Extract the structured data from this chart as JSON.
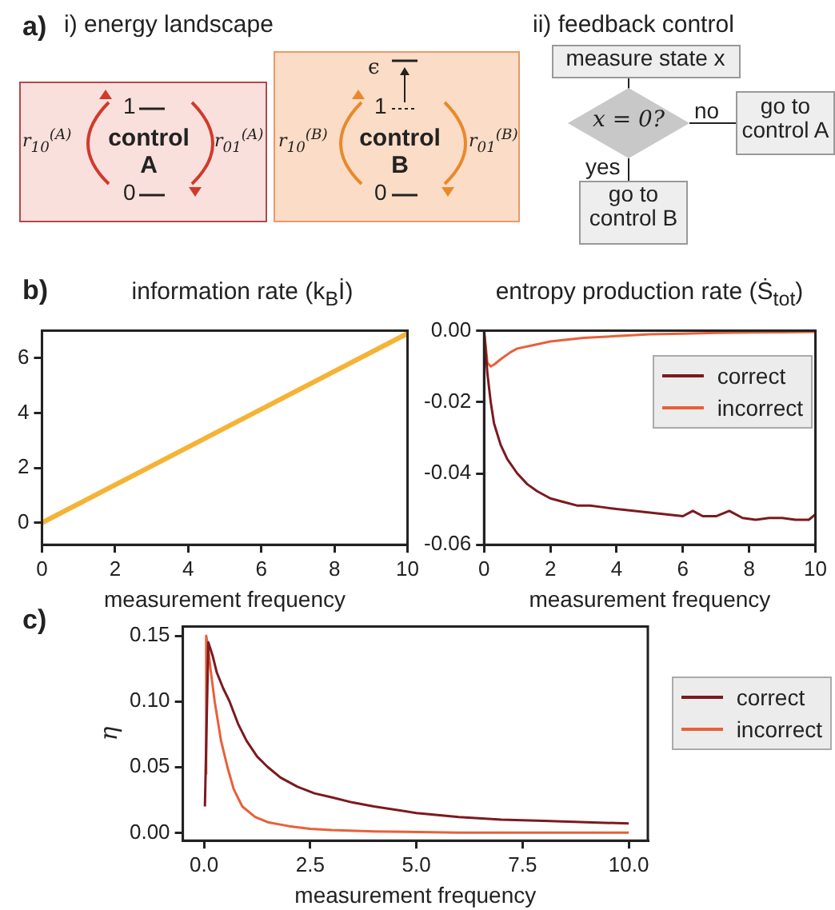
{
  "chart_data": [
    {
      "type": "other",
      "annotations": [
        "a)",
        "i) energy landscape",
        "ii) feedback control",
        "r$_{10}$$^{(A)}$",
        "r$_{01}$$^{(A)}$",
        "control A",
        "1",
        "0",
        "r$_{10}$$^{(B)}$",
        "r$_{01}$$^{(B)}$",
        "control B",
        "ϵ",
        "1",
        "0",
        "measure state x",
        "x = 0?",
        "no",
        "yes",
        "go to control A",
        "go to control B"
      ]
    },
    {
      "type": "line",
      "title": "information rate (k$_{B}$İ)",
      "xlabel": "measurement frequency",
      "annotations": [
        "b)"
      ],
      "xlim": [
        0,
        10
      ],
      "ylim": [
        -0.8,
        7
      ],
      "xticks": [
        0,
        2,
        4,
        6,
        8,
        10
      ],
      "yticks": [
        0,
        2,
        4,
        6
      ],
      "series": [
        {
          "color": "#f5b335",
          "x": [
            0,
            10
          ],
          "values": [
            0,
            6.9
          ]
        }
      ]
    },
    {
      "type": "line",
      "title": "entropy production rate (Ṡ$_{tot}$)",
      "xlabel": "measurement frequency",
      "xlim": [
        0,
        10
      ],
      "ylim": [
        -0.06,
        0
      ],
      "xticks": [
        0,
        2,
        4,
        6,
        8,
        10
      ],
      "yticks": [
        {
          "value": 0,
          "label": "0.00"
        },
        {
          "value": -0.02,
          "label": "-0.02"
        },
        {
          "value": -0.04,
          "label": "-0.04"
        },
        {
          "value": -0.06,
          "label": "-0.06"
        }
      ],
      "legend": "top right",
      "series": [
        {
          "name": "correct",
          "color": "#7b1a1f",
          "x": [
            0,
            0.1,
            0.2,
            0.3,
            0.5,
            0.7,
            1,
            1.3,
            1.6,
            2,
            2.4,
            2.8,
            3.2,
            3.6,
            4,
            4.5,
            5,
            5.5,
            6,
            6.3,
            6.6,
            7,
            7.4,
            7.8,
            8.2,
            8.6,
            9,
            9.4,
            9.8,
            10
          ],
          "values": [
            0,
            -0.012,
            -0.02,
            -0.026,
            -0.032,
            -0.036,
            -0.04,
            -0.043,
            -0.045,
            -0.047,
            -0.048,
            -0.049,
            -0.049,
            -0.0495,
            -0.05,
            -0.0505,
            -0.051,
            -0.0515,
            -0.052,
            -0.0505,
            -0.052,
            -0.052,
            -0.0505,
            -0.0525,
            -0.053,
            -0.0525,
            -0.0525,
            -0.053,
            -0.053,
            -0.0515
          ]
        },
        {
          "name": "incorrect",
          "color": "#e8603a",
          "x": [
            0,
            0.1,
            0.2,
            0.3,
            0.5,
            0.8,
            1,
            1.5,
            2,
            3,
            4,
            5,
            6,
            7,
            8,
            9,
            10
          ],
          "values": [
            0,
            -0.009,
            -0.01,
            -0.0095,
            -0.008,
            -0.006,
            -0.005,
            -0.004,
            -0.003,
            -0.002,
            -0.0015,
            -0.001,
            -0.0008,
            -0.0006,
            -0.0005,
            -0.0004,
            -0.0003
          ]
        }
      ]
    },
    {
      "type": "line",
      "xlabel": "measurement frequency",
      "ylabel": "η",
      "annotations": [
        "c)"
      ],
      "xlim": [
        -0.5,
        10.45
      ],
      "ylim": [
        -0.006,
        0.157
      ],
      "xticks": [
        {
          "value": 0,
          "label": "0.0"
        },
        2.5,
        {
          "value": 5,
          "label": "5.0"
        },
        7.5,
        {
          "value": 10,
          "label": "10.0"
        }
      ],
      "yticks": [
        {
          "value": 0,
          "label": "0.00"
        },
        {
          "value": 0.05,
          "label": "0.05"
        },
        {
          "value": 0.1,
          "label": "0.10"
        },
        {
          "value": 0.15,
          "label": "0.15"
        }
      ],
      "legend": "right",
      "series": [
        {
          "name": "correct",
          "color": "#7b1a1f",
          "x": [
            0.02,
            0.1,
            0.2,
            0.3,
            0.45,
            0.6,
            0.8,
            1,
            1.25,
            1.5,
            1.8,
            2.2,
            2.6,
            3,
            3.5,
            4,
            5,
            6,
            7,
            8,
            9,
            10
          ],
          "values": [
            0.02,
            0.145,
            0.135,
            0.122,
            0.11,
            0.1,
            0.083,
            0.07,
            0.058,
            0.05,
            0.042,
            0.035,
            0.03,
            0.027,
            0.023,
            0.02,
            0.015,
            0.012,
            0.01,
            0.009,
            0.008,
            0.007
          ]
        },
        {
          "name": "incorrect",
          "color": "#e8603a",
          "x": [
            0.02,
            0.05,
            0.1,
            0.15,
            0.25,
            0.4,
            0.55,
            0.7,
            0.9,
            1.2,
            1.5,
            2,
            2.5,
            3,
            4,
            6,
            8,
            10
          ],
          "values": [
            0.045,
            0.15,
            0.14,
            0.125,
            0.1,
            0.07,
            0.05,
            0.033,
            0.02,
            0.012,
            0.008,
            0.005,
            0.003,
            0.002,
            0.001,
            0,
            0,
            0
          ]
        }
      ]
    }
  ]
}
